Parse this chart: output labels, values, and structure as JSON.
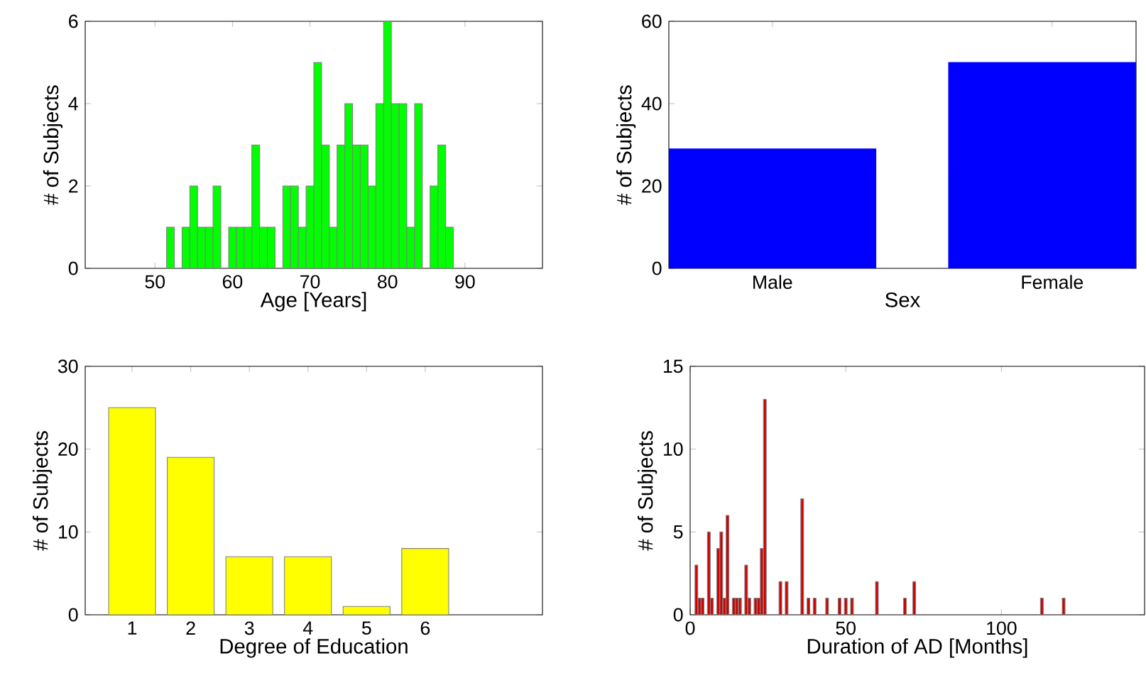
{
  "chart_data": [
    {
      "type": "histogram",
      "xlabel": "Age [Years]",
      "ylabel": "# of Subjects",
      "color": "#00ff00",
      "bins": [
        51.5,
        52.5,
        53.5,
        54.5,
        55.5,
        56.5,
        57.5,
        58.5,
        59.5,
        60.5,
        61.5,
        62.5,
        63.5,
        64.5,
        65.5,
        66.5,
        67.5,
        68.5,
        69.5,
        70.5,
        71.5,
        72.5,
        73.5,
        74.5,
        75.5,
        76.5,
        77.5,
        78.5,
        79.5,
        80.5,
        81.5,
        82.5,
        83.5,
        84.5,
        85.5,
        86.5,
        87.5,
        88.5
      ],
      "values": [
        1,
        0,
        1,
        2,
        1,
        1,
        2,
        0,
        1,
        1,
        1,
        3,
        1,
        1,
        0,
        2,
        2,
        1,
        2,
        5,
        3,
        1,
        3,
        4,
        3,
        3,
        2,
        4,
        6,
        4,
        4,
        1,
        4,
        0,
        2,
        3,
        1
      ],
      "xlim": [
        41,
        100
      ],
      "xticks": [
        50,
        60,
        70,
        80,
        90
      ],
      "ylim": [
        0,
        6
      ],
      "yticks": [
        0,
        2,
        4,
        6
      ]
    },
    {
      "type": "bar",
      "xlabel": "Sex",
      "ylabel": "# of Subjects",
      "color": "#0000ff",
      "categories": [
        "Male",
        "Female"
      ],
      "values": [
        29,
        50
      ],
      "ylim": [
        0,
        60
      ],
      "yticks": [
        0,
        20,
        40,
        60
      ]
    },
    {
      "type": "bar",
      "xlabel": "Degree of Education",
      "ylabel": "# of Subjects",
      "color": "#ffff00",
      "x": [
        1,
        2,
        3,
        4,
        5,
        6
      ],
      "values": [
        25,
        19,
        7,
        7,
        1,
        8
      ],
      "xlim": [
        0.2,
        8
      ],
      "xticks": [
        1,
        2,
        3,
        4,
        5,
        6
      ],
      "ylim": [
        0,
        30
      ],
      "yticks": [
        0,
        10,
        20,
        30
      ]
    },
    {
      "type": "bar",
      "xlabel": "Duration of AD [Months]",
      "ylabel": "# of Subjects",
      "color": "#d00000",
      "x": [
        2,
        3,
        4,
        6,
        7,
        9,
        10,
        11,
        12,
        14,
        15,
        16,
        18,
        19,
        21,
        22,
        23,
        24,
        29,
        31,
        36,
        38,
        40,
        44,
        48,
        50,
        52,
        60,
        69,
        72,
        113,
        120
      ],
      "values": [
        3,
        1,
        1,
        5,
        1,
        4,
        5,
        1,
        6,
        1,
        1,
        1,
        3,
        1,
        1,
        1,
        4,
        13,
        2,
        2,
        7,
        1,
        1,
        1,
        1,
        1,
        1,
        2,
        1,
        2,
        1,
        1
      ],
      "xlim": [
        0,
        146
      ],
      "xticks": [
        0,
        50,
        100
      ],
      "ylim": [
        0,
        15
      ],
      "yticks": [
        0,
        5,
        10,
        15
      ]
    }
  ]
}
